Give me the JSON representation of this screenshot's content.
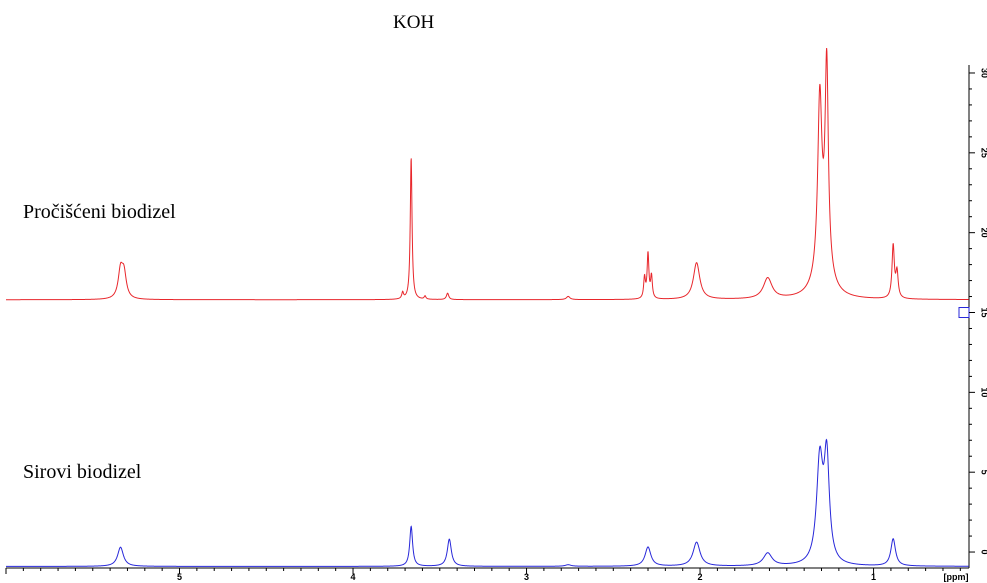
{
  "chart_data": {
    "type": "line",
    "title": "KOH",
    "xlabel": "[ppm]",
    "xlim": [
      6.0,
      0.45
    ],
    "x_reversed": true,
    "ylim": [
      -1,
      30.5
    ],
    "x_ticks": [
      "5",
      "4",
      "3",
      "2",
      "1"
    ],
    "y_ticks": [
      "30",
      "25",
      "20",
      "15",
      "10",
      "5",
      "0"
    ],
    "series": [
      {
        "name": "Pročišćeni biodizel",
        "color": "#e8262b",
        "baseline": 15.8,
        "peaks": [
          {
            "x": 5.34,
            "h": 1.7,
            "w": 0.016
          },
          {
            "x": 5.32,
            "h": 1.5,
            "w": 0.016
          },
          {
            "x": 3.714,
            "h": 0.4,
            "w": 0.006
          },
          {
            "x": 3.665,
            "h": 8.9,
            "w": 0.006
          },
          {
            "x": 3.585,
            "h": 0.2,
            "w": 0.006
          },
          {
            "x": 3.455,
            "h": 0.4,
            "w": 0.008
          },
          {
            "x": 2.76,
            "h": 0.2,
            "w": 0.012
          },
          {
            "x": 2.32,
            "h": 1.3,
            "w": 0.006
          },
          {
            "x": 2.3,
            "h": 2.8,
            "w": 0.006
          },
          {
            "x": 2.28,
            "h": 1.4,
            "w": 0.006
          },
          {
            "x": 2.02,
            "h": 2.3,
            "w": 0.022
          },
          {
            "x": 1.61,
            "h": 1.3,
            "w": 0.03
          },
          {
            "x": 1.31,
            "h": 10.5,
            "w": 0.014
          },
          {
            "x": 1.27,
            "h": 12.5,
            "w": 0.011
          },
          {
            "x": 1.29,
            "h": 2.5,
            "w": 0.045
          },
          {
            "x": 0.887,
            "h": 3.3,
            "w": 0.008
          },
          {
            "x": 0.865,
            "h": 1.6,
            "w": 0.008
          }
        ]
      },
      {
        "name": "Sirovi biodizel",
        "color": "#2727d9",
        "baseline": -0.9,
        "peaks": [
          {
            "x": 5.34,
            "h": 1.2,
            "w": 0.02
          },
          {
            "x": 3.665,
            "h": 2.5,
            "w": 0.01
          },
          {
            "x": 3.445,
            "h": 1.7,
            "w": 0.014
          },
          {
            "x": 2.76,
            "h": 0.1,
            "w": 0.02
          },
          {
            "x": 2.3,
            "h": 1.2,
            "w": 0.02
          },
          {
            "x": 2.02,
            "h": 1.5,
            "w": 0.024
          },
          {
            "x": 1.61,
            "h": 0.8,
            "w": 0.03
          },
          {
            "x": 1.31,
            "h": 6.4,
            "w": 0.022
          },
          {
            "x": 1.27,
            "h": 6.4,
            "w": 0.018
          },
          {
            "x": 0.887,
            "h": 1.7,
            "w": 0.016
          }
        ]
      }
    ],
    "integral_marker_y": 15.0
  }
}
